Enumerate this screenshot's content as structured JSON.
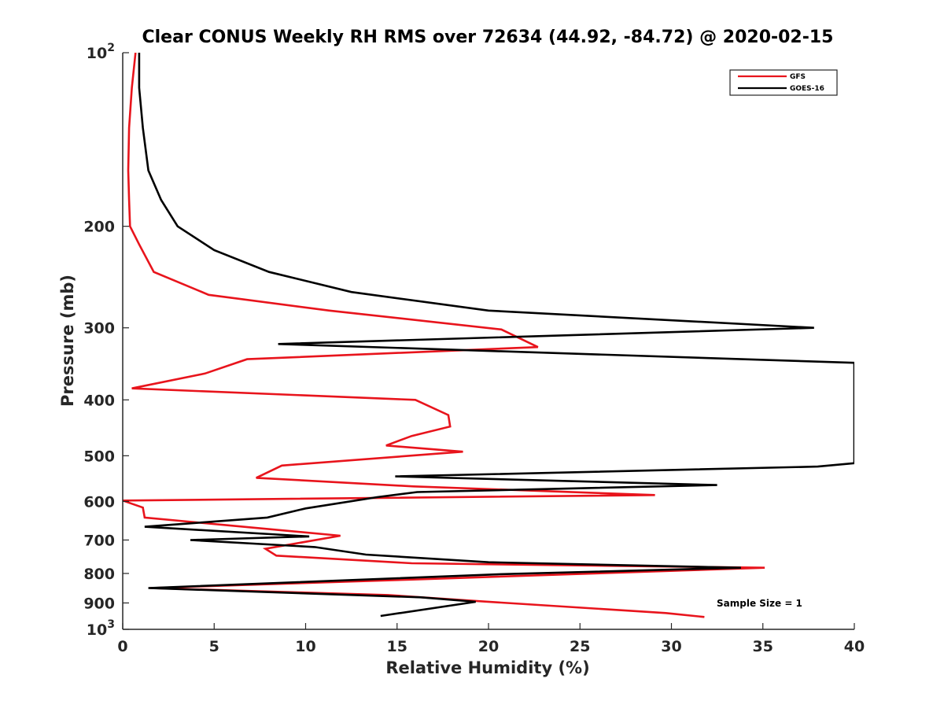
{
  "chart_data": {
    "type": "line",
    "title": "Clear CONUS Weekly RH RMS over 72634 (44.92, -84.72) @ 2020-02-15",
    "xlabel": "Relative Humidity (%)",
    "ylabel": "Pressure (mb)",
    "xlim": [
      0,
      40
    ],
    "ylim": [
      100,
      1000
    ],
    "yscale": "log",
    "yreversed": true,
    "xticks": [
      0,
      5,
      10,
      15,
      20,
      25,
      30,
      35,
      40
    ],
    "xtick_labels": [
      "0",
      "5",
      "10",
      "15",
      "20",
      "25",
      "30",
      "35",
      "40"
    ],
    "yticks": [
      {
        "value": 100,
        "base": "10",
        "exp": "2"
      },
      {
        "value": 200,
        "base": "200",
        "exp": ""
      },
      {
        "value": 300,
        "base": "300",
        "exp": ""
      },
      {
        "value": 400,
        "base": "400",
        "exp": ""
      },
      {
        "value": 500,
        "base": "500",
        "exp": ""
      },
      {
        "value": 600,
        "base": "600",
        "exp": ""
      },
      {
        "value": 700,
        "base": "700",
        "exp": ""
      },
      {
        "value": 800,
        "base": "800",
        "exp": ""
      },
      {
        "value": 900,
        "base": "900",
        "exp": ""
      },
      {
        "value": 1000,
        "base": "10",
        "exp": "3"
      }
    ],
    "legend_position": "top-right",
    "annotation": "Sample Size = 1",
    "series": [
      {
        "name": "GFS",
        "color": "#e8141c",
        "points": [
          [
            0.7,
            100
          ],
          [
            0.5,
            115
          ],
          [
            0.35,
            135
          ],
          [
            0.3,
            160
          ],
          [
            0.35,
            180
          ],
          [
            0.4,
            200
          ],
          [
            0.9,
            215
          ],
          [
            1.7,
            240
          ],
          [
            4.7,
            263
          ],
          [
            11.3,
            280
          ],
          [
            20.7,
            302
          ],
          [
            22.7,
            324
          ],
          [
            6.8,
            340
          ],
          [
            4.5,
            360
          ],
          [
            0.5,
            382
          ],
          [
            16.0,
            400
          ],
          [
            17.8,
            425
          ],
          [
            17.9,
            445
          ],
          [
            15.8,
            462
          ],
          [
            14.4,
            480
          ],
          [
            18.6,
            492
          ],
          [
            8.7,
            520
          ],
          [
            7.3,
            546
          ],
          [
            15.9,
            565
          ],
          [
            29.1,
            585
          ],
          [
            0,
            598
          ],
          [
            1.1,
            615
          ],
          [
            1.2,
            640
          ],
          [
            11.9,
            688
          ],
          [
            7.8,
            725
          ],
          [
            8.4,
            745
          ],
          [
            15.8,
            768
          ],
          [
            35.1,
            782
          ],
          [
            15.7,
            820
          ],
          [
            1.5,
            848
          ],
          [
            14.5,
            872
          ],
          [
            19.8,
            895
          ],
          [
            29.7,
            937
          ],
          [
            31.8,
            952
          ]
        ]
      },
      {
        "name": "GOES-16",
        "color": "#000000",
        "points": [
          [
            0.9,
            100
          ],
          [
            0.9,
            115
          ],
          [
            1.1,
            135
          ],
          [
            1.4,
            160
          ],
          [
            2.1,
            180
          ],
          [
            3.0,
            200
          ],
          [
            5.0,
            220
          ],
          [
            8.0,
            240
          ],
          [
            12.5,
            260
          ],
          [
            20.0,
            280
          ],
          [
            37.8,
            300
          ],
          [
            8.5,
            320
          ],
          [
            40.0,
            345
          ],
          [
            40.0,
            515
          ],
          [
            38.0,
            522
          ],
          [
            14.9,
            543
          ],
          [
            32.5,
            562
          ],
          [
            16.1,
            578
          ],
          [
            13.9,
            590
          ],
          [
            10.0,
            617
          ],
          [
            7.9,
            640
          ],
          [
            1.2,
            664
          ],
          [
            10.2,
            690
          ],
          [
            3.7,
            700
          ],
          [
            10.5,
            720
          ],
          [
            13.3,
            742
          ],
          [
            20.0,
            765
          ],
          [
            33.8,
            782
          ],
          [
            20.8,
            802
          ],
          [
            1.4,
            848
          ],
          [
            16.3,
            880
          ],
          [
            19.3,
            896
          ],
          [
            14.1,
            948
          ]
        ]
      }
    ]
  }
}
